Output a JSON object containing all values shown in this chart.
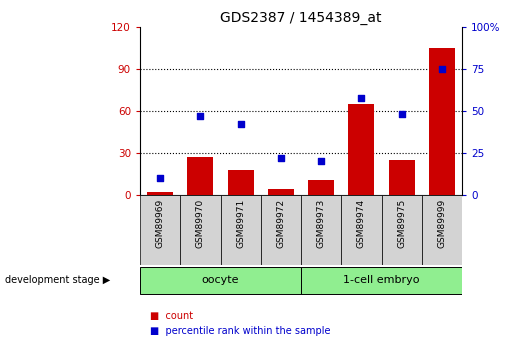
{
  "title": "GDS2387 / 1454389_at",
  "samples": [
    "GSM89969",
    "GSM89970",
    "GSM89971",
    "GSM89972",
    "GSM89973",
    "GSM89974",
    "GSM89975",
    "GSM89999"
  ],
  "counts": [
    2,
    27,
    18,
    4,
    11,
    65,
    25,
    105
  ],
  "percentiles": [
    10,
    47,
    42,
    22,
    20,
    58,
    48,
    75
  ],
  "groups": [
    {
      "label": "oocyte",
      "indices": [
        0,
        1,
        2,
        3
      ],
      "color": "#90ee90"
    },
    {
      "label": "1-cell embryo",
      "indices": [
        4,
        5,
        6,
        7
      ],
      "color": "#90ee90"
    }
  ],
  "left_ylim": [
    0,
    120
  ],
  "right_ylim": [
    0,
    100
  ],
  "left_yticks": [
    0,
    30,
    60,
    90,
    120
  ],
  "right_yticks": [
    0,
    25,
    50,
    75,
    100
  ],
  "bar_color": "#cc0000",
  "dot_color": "#0000cc",
  "tick_label_area_color": "#d3d3d3",
  "left_axis_color": "#cc0000",
  "right_axis_color": "#0000cc",
  "legend_count_label": "count",
  "legend_pct_label": "percentile rank within the sample",
  "dev_stage_label": "development stage"
}
